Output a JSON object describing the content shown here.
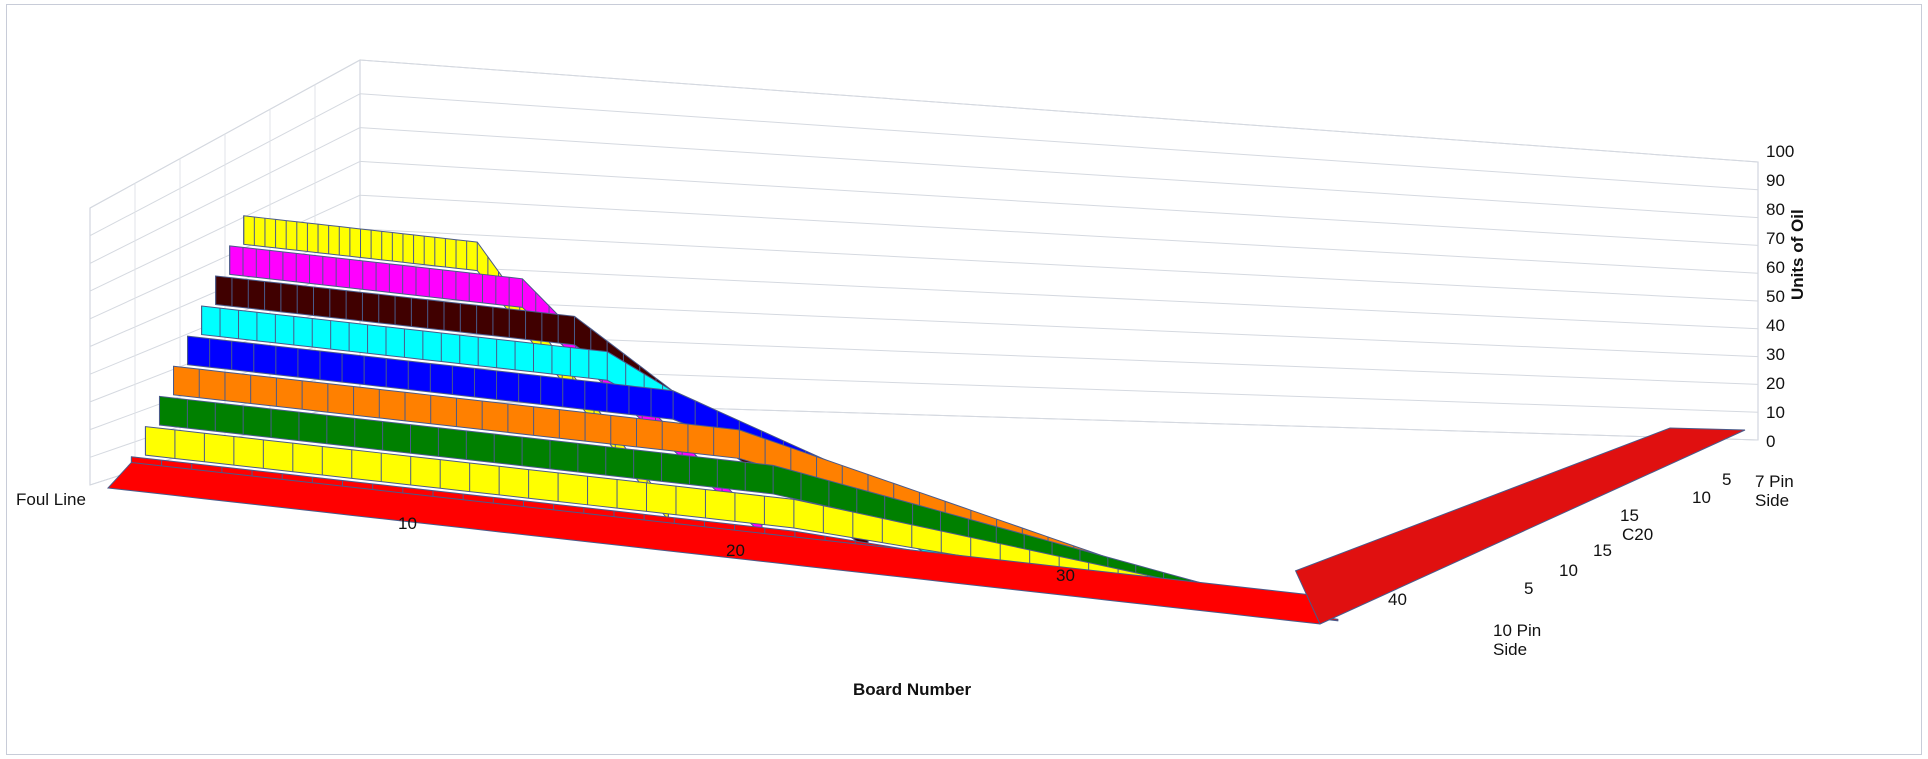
{
  "chart_data": {
    "type": "surface",
    "title": "",
    "xlabel": "Board Number",
    "zlabel": "Units of Oil",
    "x_start_label": "Foul Line",
    "x_ticks": [
      "10",
      "20",
      "30",
      "40"
    ],
    "z_ticks": [
      "0",
      "10",
      "20",
      "30",
      "40",
      "50",
      "60",
      "70",
      "80",
      "90",
      "100"
    ],
    "zlim": [
      0,
      100
    ],
    "y_end_labels": [
      "10 Pin\nSide",
      "7 Pin\nSide"
    ],
    "y_ticks": [
      "5",
      "10",
      "15",
      "C20",
      "15",
      "10",
      "5"
    ],
    "grid": true,
    "color_bands": [
      {
        "range": [
          0,
          10
        ],
        "color": "#ff0000"
      },
      {
        "range": [
          10,
          20
        ],
        "color": "#ffff00"
      },
      {
        "range": [
          20,
          30
        ],
        "color": "#008000"
      },
      {
        "range": [
          30,
          40
        ],
        "color": "#ff8000"
      },
      {
        "range": [
          40,
          50
        ],
        "color": "#0000ff"
      },
      {
        "range": [
          50,
          60
        ],
        "color": "#00ffff"
      },
      {
        "range": [
          60,
          70
        ],
        "color": "#400000"
      },
      {
        "range": [
          70,
          80
        ],
        "color": "#ff00ff"
      },
      {
        "range": [
          80,
          90
        ],
        "color": "#ffff00"
      }
    ],
    "mesh_color": "#4a5a8a"
  }
}
